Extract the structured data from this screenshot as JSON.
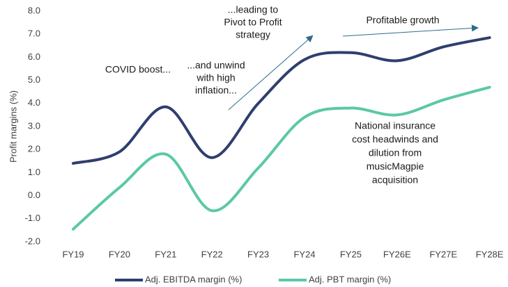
{
  "chart_data": {
    "type": "line",
    "y_label": "Profit margins (%)",
    "categories": [
      "FY19",
      "FY20",
      "FY21",
      "FY22",
      "FY23",
      "FY24",
      "FY25",
      "FY26E",
      "FY27E",
      "FY28E"
    ],
    "series": [
      {
        "name": "Adj. EBITDA margin (%)",
        "color": "#2e3f6e",
        "values": [
          1.4,
          1.9,
          3.85,
          1.65,
          4.0,
          5.9,
          6.2,
          5.85,
          6.45,
          6.85
        ]
      },
      {
        "name": "Adj. PBT margin (%)",
        "color": "#5bc8a6",
        "values": [
          -1.45,
          0.35,
          1.8,
          -0.65,
          1.2,
          3.4,
          3.8,
          3.5,
          4.15,
          4.7
        ]
      }
    ],
    "ylim": [
      -2,
      8
    ],
    "yticks": [
      {
        "value": -2,
        "label": "-2.0"
      },
      {
        "value": -1,
        "label": "-1.0"
      },
      {
        "value": 0,
        "label": "0.0"
      },
      {
        "value": 1,
        "label": "1.0"
      },
      {
        "value": 2,
        "label": "2.0"
      },
      {
        "value": 3,
        "label": "3.0"
      },
      {
        "value": 4,
        "label": "4.0"
      },
      {
        "value": 5,
        "label": "5.0"
      },
      {
        "value": 6,
        "label": "6.0"
      },
      {
        "value": 7,
        "label": "7.0"
      },
      {
        "value": 8,
        "label": "8.0"
      }
    ],
    "annotations": [
      {
        "lines": [
          "...leading to",
          "Pivot to Profit",
          "strategy"
        ]
      },
      {
        "lines": [
          "Profitable growth"
        ]
      },
      {
        "lines": [
          "COVID boost..."
        ]
      },
      {
        "lines": [
          "...and unwind",
          "with high",
          "inflation..."
        ]
      },
      {
        "lines": [
          "National insurance",
          "cost headwinds and",
          "dilution from",
          "musicMagpie",
          "acquisition"
        ]
      }
    ],
    "legend": "bottom"
  }
}
